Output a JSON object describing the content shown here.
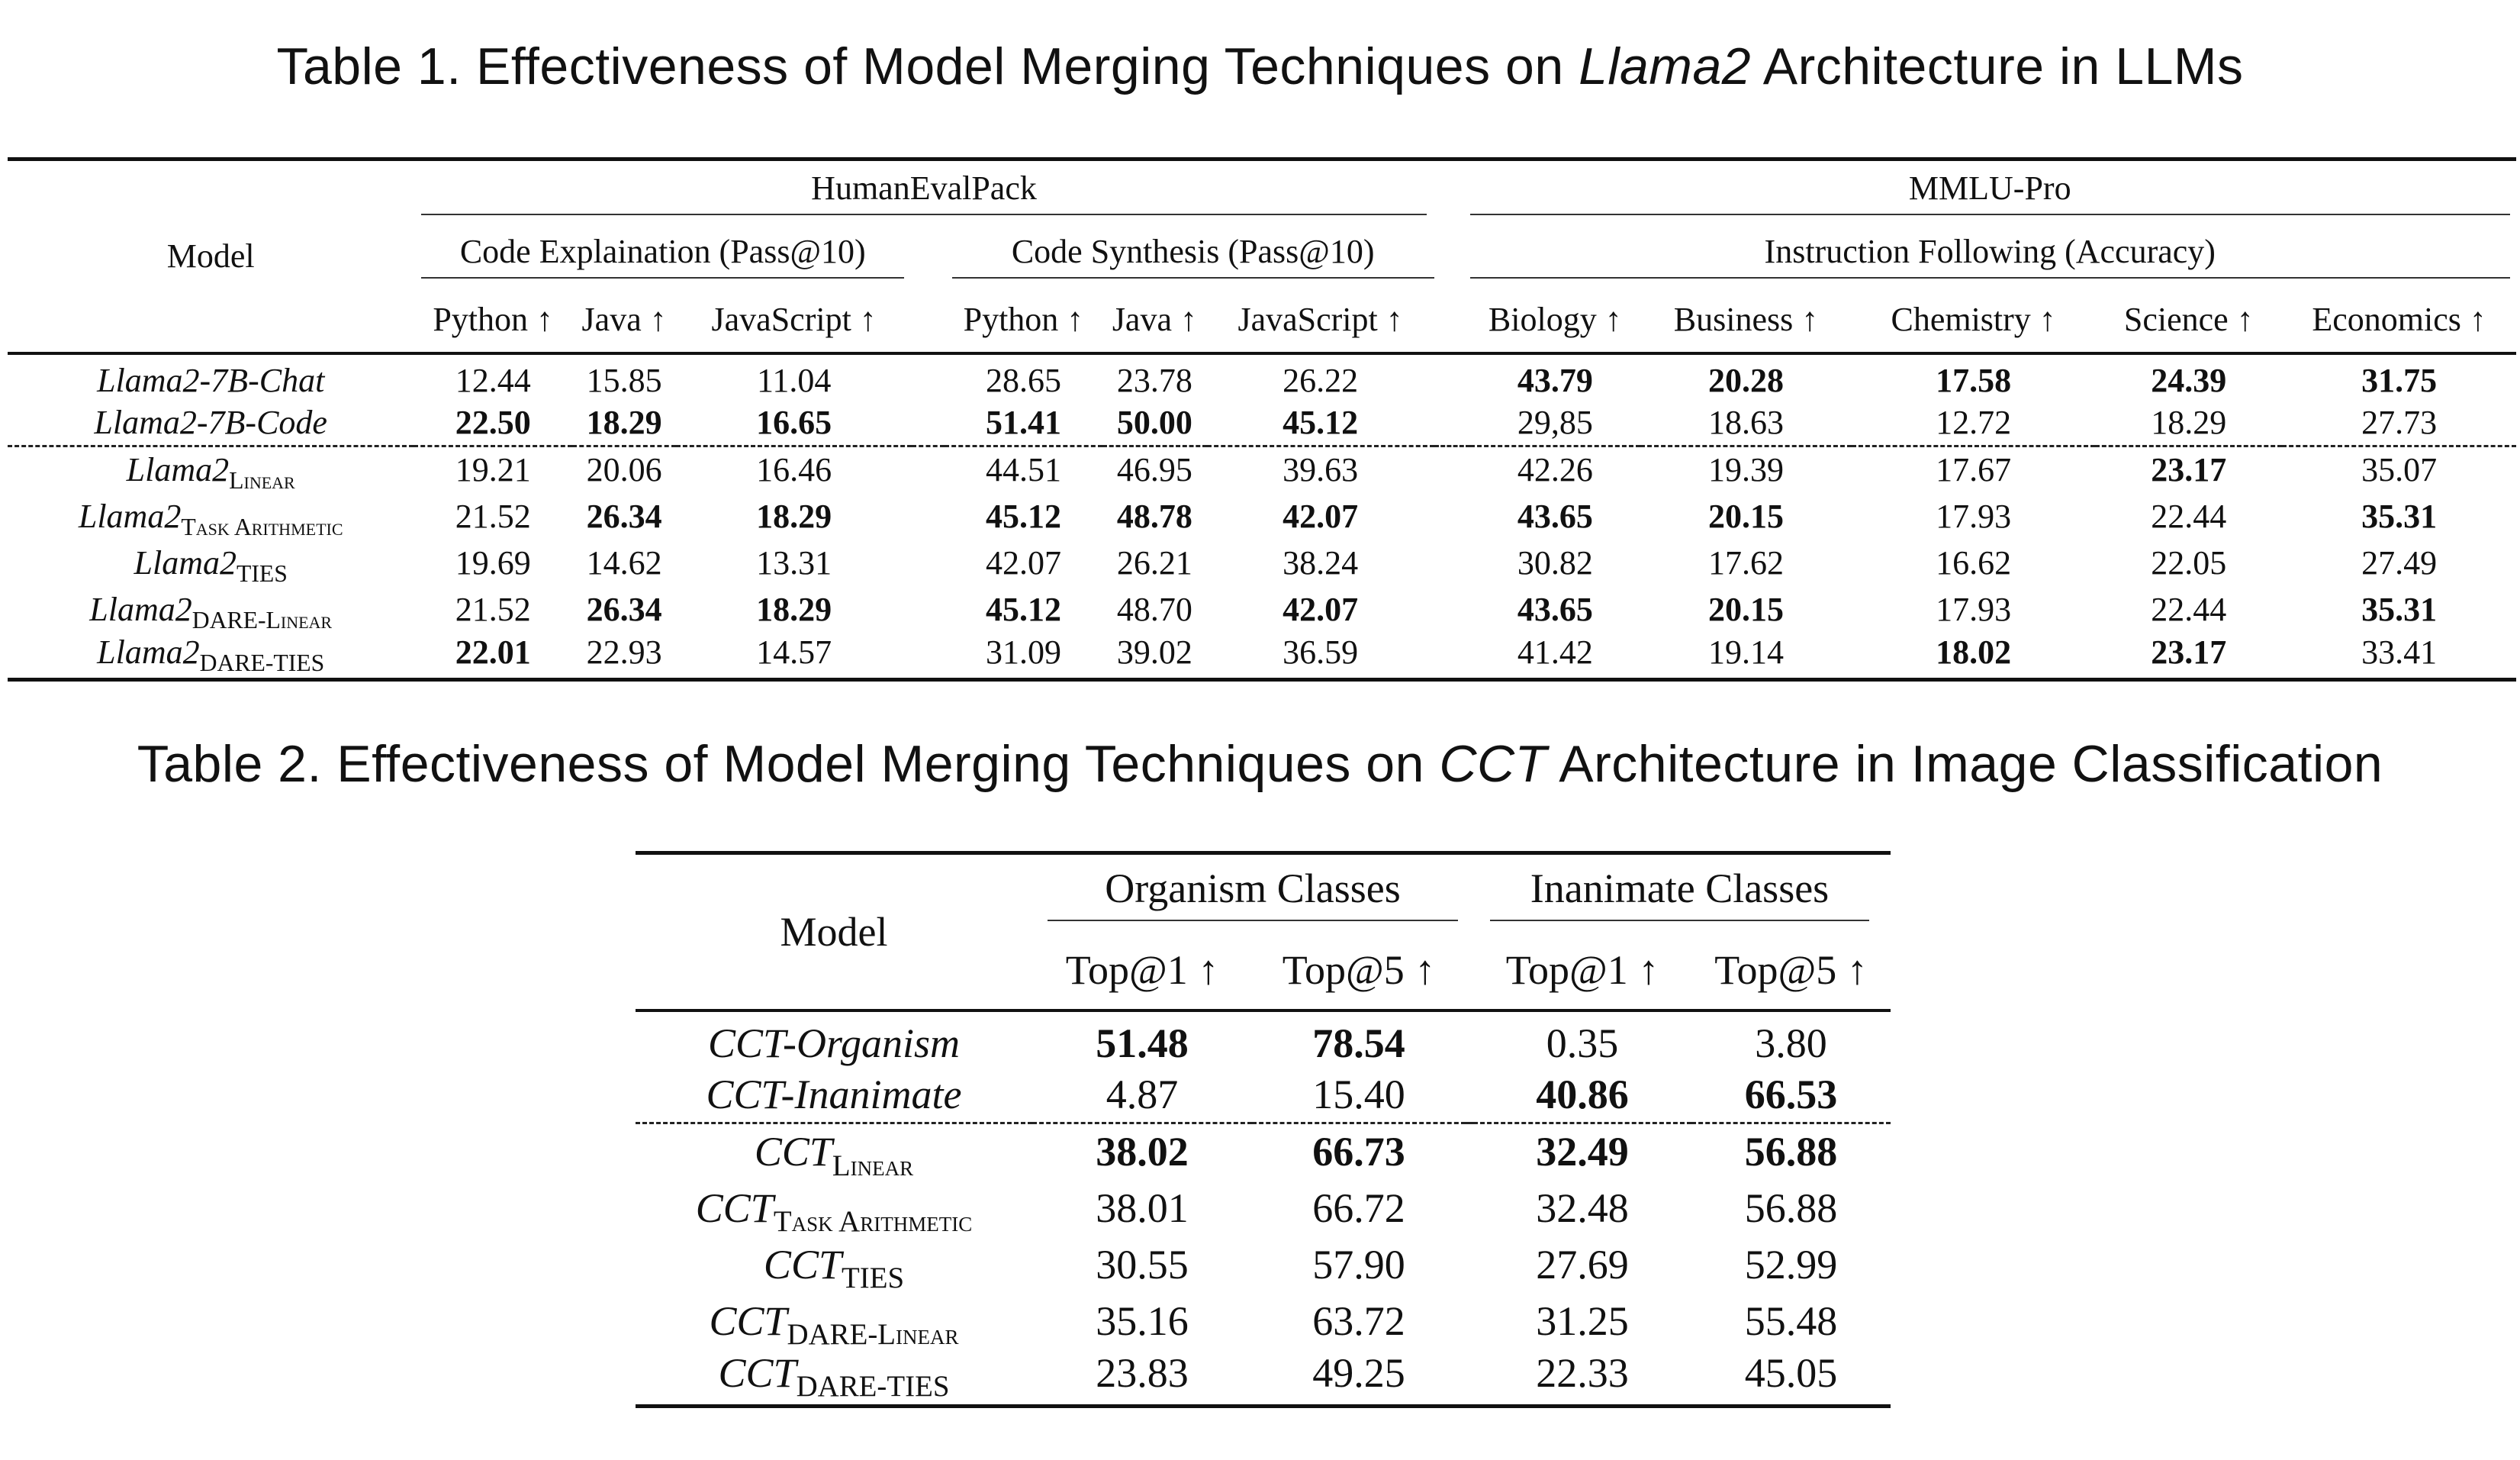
{
  "table1": {
    "caption_prefix": "Table 1.  Effectiveness of Model Merging Techniques on ",
    "caption_italic": "Llama2",
    "caption_suffix": " Architecture in LLMs",
    "model_header": "Model",
    "group1": "HumanEvalPack",
    "group2": "MMLU-Pro",
    "sub1": "Code Explaination (Pass@10)",
    "sub2": "Code Synthesis (Pass@10)",
    "sub3": "Instruction Following (Accuracy)",
    "columns": [
      "Python ↑",
      "Java ↑",
      "JavaScript ↑",
      "Python ↑",
      "Java ↑",
      "JavaScript ↑",
      "Biology ↑",
      "Business ↑",
      "Chemistry ↑",
      "Science ↑",
      "Economics ↑"
    ],
    "rows": [
      {
        "base": "Llama2-7B-Chat",
        "sub": "",
        "values": [
          "12.44",
          "15.85",
          "11.04",
          "28.65",
          "23.78",
          "26.22",
          "43.79",
          "20.28",
          "17.58",
          "24.39",
          "31.75"
        ],
        "bold": [
          false,
          false,
          false,
          false,
          false,
          false,
          true,
          true,
          true,
          true,
          true
        ]
      },
      {
        "base": "Llama2-7B-Code",
        "sub": "",
        "values": [
          "22.50",
          "18.29",
          "16.65",
          "51.41",
          "50.00",
          "45.12",
          "29,85",
          "18.63",
          "12.72",
          "18.29",
          "27.73"
        ],
        "bold": [
          true,
          true,
          true,
          true,
          true,
          true,
          false,
          false,
          false,
          false,
          false
        ]
      },
      {
        "base": "Llama2",
        "sub": "Linear",
        "values": [
          "19.21",
          "20.06",
          "16.46",
          "44.51",
          "46.95",
          "39.63",
          "42.26",
          "19.39",
          "17.67",
          "23.17",
          "35.07"
        ],
        "bold": [
          false,
          false,
          false,
          false,
          false,
          false,
          false,
          false,
          false,
          true,
          false
        ]
      },
      {
        "base": "Llama2",
        "sub": "Task Arithmetic",
        "values": [
          "21.52",
          "26.34",
          "18.29",
          "45.12",
          "48.78",
          "42.07",
          "43.65",
          "20.15",
          "17.93",
          "22.44",
          "35.31"
        ],
        "bold": [
          false,
          true,
          true,
          true,
          true,
          true,
          true,
          true,
          false,
          false,
          true
        ]
      },
      {
        "base": "Llama2",
        "sub": "TIES",
        "values": [
          "19.69",
          "14.62",
          "13.31",
          "42.07",
          "26.21",
          "38.24",
          "30.82",
          "17.62",
          "16.62",
          "22.05",
          "27.49"
        ],
        "bold": [
          false,
          false,
          false,
          false,
          false,
          false,
          false,
          false,
          false,
          false,
          false
        ]
      },
      {
        "base": "Llama2",
        "sub": "DARE-Linear",
        "values": [
          "21.52",
          "26.34",
          "18.29",
          "45.12",
          "48.70",
          "42.07",
          "43.65",
          "20.15",
          "17.93",
          "22.44",
          "35.31"
        ],
        "bold": [
          false,
          true,
          true,
          true,
          false,
          true,
          true,
          true,
          false,
          false,
          true
        ]
      },
      {
        "base": "Llama2",
        "sub": "DARE-TIES",
        "values": [
          "22.01",
          "22.93",
          "14.57",
          "31.09",
          "39.02",
          "36.59",
          "41.42",
          "19.14",
          "18.02",
          "23.17",
          "33.41"
        ],
        "bold": [
          true,
          false,
          false,
          false,
          false,
          false,
          false,
          false,
          true,
          true,
          false
        ]
      }
    ]
  },
  "table2": {
    "caption_prefix": "Table 2.  Effectiveness of Model Merging Techniques on ",
    "caption_italic": "CCT",
    "caption_suffix": " Architecture in Image Classification",
    "model_header": "Model",
    "group1": "Organism Classes",
    "group2": "Inanimate Classes",
    "columns": [
      "Top@1 ↑",
      "Top@5 ↑",
      "Top@1 ↑",
      "Top@5 ↑"
    ],
    "rows": [
      {
        "base": "CCT-Organism",
        "sub": "",
        "values": [
          "51.48",
          "78.54",
          "0.35",
          "3.80"
        ],
        "bold": [
          true,
          true,
          false,
          false
        ]
      },
      {
        "base": "CCT-Inanimate",
        "sub": "",
        "values": [
          "4.87",
          "15.40",
          "40.86",
          "66.53"
        ],
        "bold": [
          false,
          false,
          true,
          true
        ]
      },
      {
        "base": "CCT",
        "sub": "Linear",
        "values": [
          "38.02",
          "66.73",
          "32.49",
          "56.88"
        ],
        "bold": [
          true,
          true,
          true,
          true
        ]
      },
      {
        "base": "CCT",
        "sub": "Task Arithmetic",
        "values": [
          "38.01",
          "66.72",
          "32.48",
          "56.88"
        ],
        "bold": [
          false,
          false,
          false,
          false
        ]
      },
      {
        "base": "CCT",
        "sub": "TIES",
        "values": [
          "30.55",
          "57.90",
          "27.69",
          "52.99"
        ],
        "bold": [
          false,
          false,
          false,
          false
        ]
      },
      {
        "base": "CCT",
        "sub": "DARE-Linear",
        "values": [
          "35.16",
          "63.72",
          "31.25",
          "55.48"
        ],
        "bold": [
          false,
          false,
          false,
          false
        ]
      },
      {
        "base": "CCT",
        "sub": "DARE-TIES",
        "values": [
          "23.83",
          "49.25",
          "22.33",
          "45.05"
        ],
        "bold": [
          false,
          false,
          false,
          false
        ]
      }
    ]
  }
}
